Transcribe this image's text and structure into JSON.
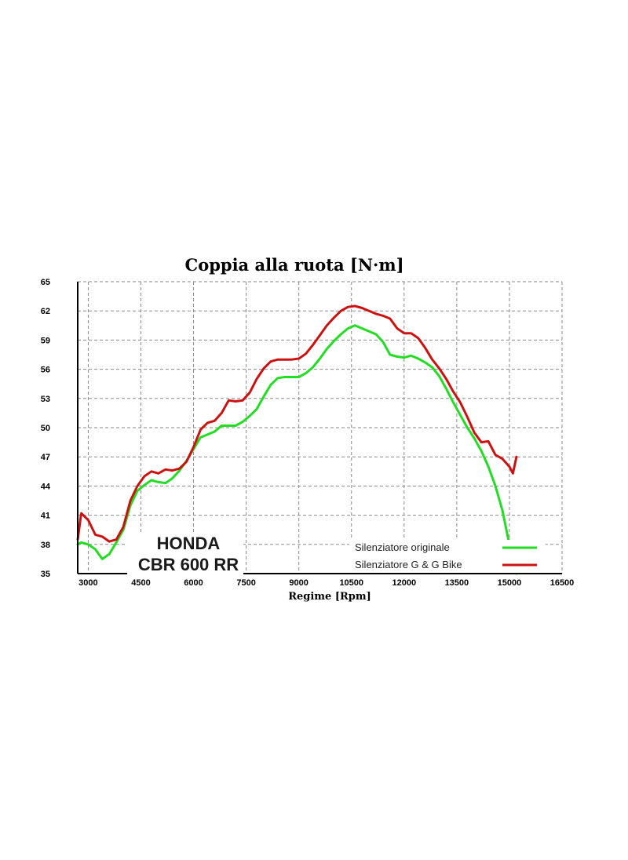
{
  "chart_data": {
    "type": "line",
    "title": "Coppia alla ruota [N·m]",
    "xlabel": "Regime [Rpm]",
    "ylabel": "",
    "xlim": [
      2700,
      16500
    ],
    "ylim": [
      35,
      65
    ],
    "x_ticks": [
      "3000",
      "4500",
      "6000",
      "7500",
      "9000",
      "10500",
      "12000",
      "13500",
      "15000",
      "16500"
    ],
    "y_ticks": [
      "65",
      "62",
      "59",
      "56",
      "53",
      "50",
      "47",
      "44",
      "41",
      "38",
      "35"
    ],
    "grid": true,
    "legend_position": "bottom-right",
    "annotation": [
      "HONDA",
      "CBR 600 RR"
    ],
    "series": [
      {
        "name": "Silenziatore originale",
        "color": "#22dd22",
        "x": [
          2700,
          2800,
          3000,
          3200,
          3400,
          3600,
          3800,
          4000,
          4200,
          4400,
          4600,
          4800,
          5000,
          5200,
          5400,
          5600,
          5800,
          6000,
          6200,
          6400,
          6600,
          6800,
          7000,
          7200,
          7400,
          7600,
          7800,
          8000,
          8200,
          8400,
          8600,
          8800,
          9000,
          9200,
          9400,
          9600,
          9800,
          10000,
          10200,
          10400,
          10600,
          10800,
          11000,
          11200,
          11400,
          11600,
          11800,
          12000,
          12200,
          12400,
          12600,
          12800,
          13000,
          13200,
          13400,
          13600,
          13800,
          14000,
          14200,
          14400,
          14600,
          14800,
          15000,
          15100,
          15200
        ],
        "y": [
          38.0,
          38.2,
          38.0,
          37.5,
          36.5,
          37.0,
          38.2,
          39.5,
          42.0,
          43.5,
          44.1,
          44.6,
          44.4,
          44.3,
          44.8,
          45.6,
          46.6,
          47.8,
          49.0,
          49.3,
          49.6,
          50.2,
          50.2,
          50.2,
          50.6,
          51.2,
          51.9,
          53.2,
          54.4,
          55.1,
          55.2,
          55.2,
          55.2,
          55.6,
          56.2,
          57.1,
          58.1,
          58.9,
          59.6,
          60.2,
          60.5,
          60.2,
          59.9,
          59.6,
          58.8,
          57.5,
          57.3,
          57.2,
          57.4,
          57.1,
          56.7,
          56.2,
          55.3,
          54.0,
          52.6,
          51.3,
          50.0,
          48.9,
          47.6,
          46.0,
          44.0,
          41.5,
          38.0,
          35.2,
          34.5
        ]
      },
      {
        "name": "Silenziatore G & G Bike",
        "color": "#cc1111",
        "x": [
          2700,
          2800,
          3000,
          3200,
          3400,
          3600,
          3800,
          4000,
          4200,
          4400,
          4600,
          4800,
          5000,
          5200,
          5400,
          5600,
          5800,
          6000,
          6200,
          6400,
          6600,
          6800,
          7000,
          7200,
          7400,
          7600,
          7800,
          8000,
          8200,
          8400,
          8600,
          8800,
          9000,
          9200,
          9400,
          9600,
          9800,
          10000,
          10200,
          10400,
          10600,
          10800,
          11000,
          11200,
          11400,
          11600,
          11800,
          12000,
          12200,
          12400,
          12600,
          12800,
          13000,
          13200,
          13400,
          13600,
          13800,
          14000,
          14200,
          14400,
          14600,
          14800,
          15000,
          15100,
          15200
        ],
        "y": [
          38.5,
          41.2,
          40.5,
          39.0,
          38.8,
          38.3,
          38.5,
          39.8,
          42.5,
          44.0,
          45.0,
          45.5,
          45.3,
          45.7,
          45.6,
          45.8,
          46.5,
          48.0,
          49.8,
          50.5,
          50.7,
          51.5,
          52.8,
          52.7,
          52.8,
          53.6,
          55.0,
          56.1,
          56.8,
          57.0,
          57.0,
          57.0,
          57.1,
          57.6,
          58.5,
          59.5,
          60.5,
          61.3,
          62.0,
          62.4,
          62.5,
          62.3,
          62.0,
          61.7,
          61.5,
          61.2,
          60.2,
          59.7,
          59.7,
          59.2,
          58.2,
          57.0,
          56.1,
          55.0,
          53.7,
          52.6,
          51.1,
          49.5,
          48.5,
          48.6,
          47.2,
          46.8,
          46.0,
          45.3,
          47.0
        ]
      }
    ]
  }
}
